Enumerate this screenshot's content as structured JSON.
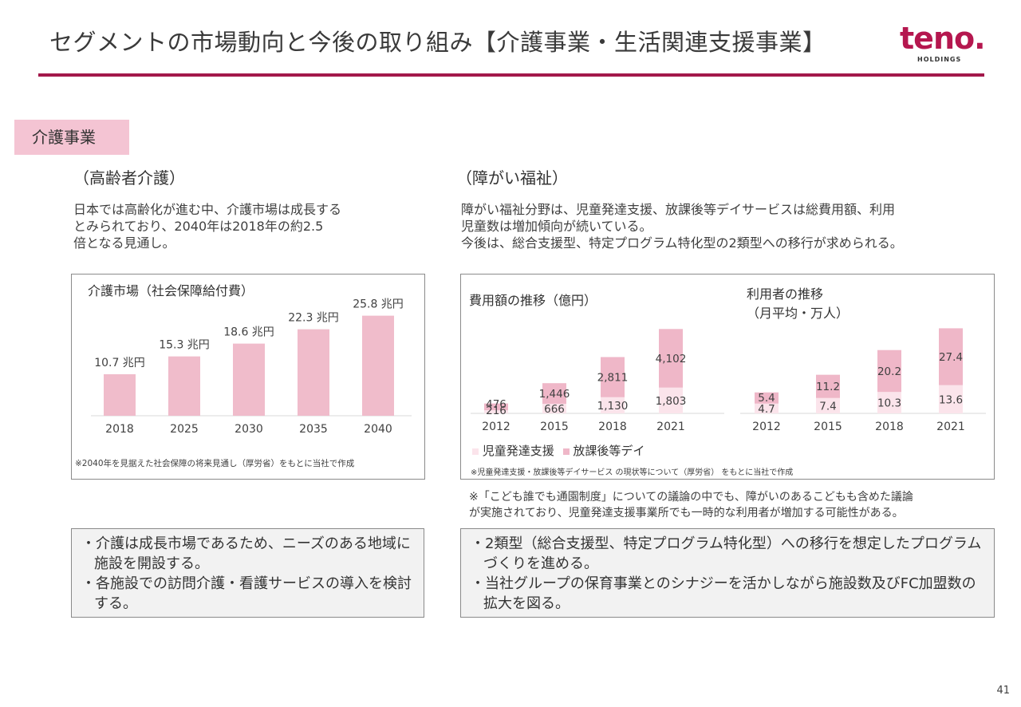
{
  "header": {
    "title": "セグメントの市場動向と今後の取り組み【介護事業・生活関連支援事業】",
    "logo_text": "teno.",
    "logo_sub": "HOLDINGS",
    "accent_color": "#a3184a"
  },
  "segment_tab": "介護事業",
  "left": {
    "heading": "（高齢者介護）",
    "para_lines": [
      "日本では高齢化が進む中、介護市場は成長する",
      "とみられており、2040年は2018年の約2.5",
      "倍となる見通し。"
    ],
    "source": "※2040年を見据えた社会保障の将来見通し（厚労省）をもとに当社で作成",
    "bullets": [
      "・介護は成長市場であるため、ニーズのある地域に施設を開設する。",
      "・各施設での訪問介護・看護サービスの導入を検討する。"
    ]
  },
  "right": {
    "heading": "（障がい福祉）",
    "para_lines": [
      "障がい福祉分野は、児童発達支援、放課後等デイサービスは総費用額、利用",
      "児童数は増加傾向が続いている。",
      "今後は、総合支援型、特定プログラム特化型の2類型への移行が求められる。"
    ],
    "legend": [
      "児童発達支援",
      "放課後等デイ"
    ],
    "source": "※児童発達支援・放課後等デイサービス の現状等について（厚労省） をもとに当社で作成",
    "note_lines": [
      "※「こども誰でも通園制度」についての議論の中でも、障がいのあるこどもも含めた議論",
      "が実施されており、児童発達支援事業所でも一時的な利用者が増加する可能性がある。"
    ],
    "bullets": [
      "・2類型（総合支援型、特定プログラム特化型）への移行を想定したプログラムづくりを進める。",
      "・当社グループの保育事業とのシナジーを活かしながら施設数及びFC加盟数の拡大を図る。"
    ]
  },
  "page_number": "41",
  "chart_data": [
    {
      "type": "bar",
      "title": "介護市場（社会保障給付費）",
      "categories": [
        "2018",
        "2025",
        "2030",
        "2035",
        "2040"
      ],
      "values": [
        10.7,
        15.3,
        18.6,
        22.3,
        25.8
      ],
      "labels": [
        "10.7 兆円",
        "15.3 兆円",
        "18.6 兆円",
        "22.3 兆円",
        "25.8 兆円"
      ],
      "unit": "兆円",
      "color": "#f0bccb"
    },
    {
      "type": "bar",
      "stacked": true,
      "title": "費用額の推移（億円）",
      "categories": [
        "2012",
        "2015",
        "2018",
        "2021"
      ],
      "series": [
        {
          "name": "児童発達支援",
          "values": [
            216,
            666,
            1130,
            1803
          ],
          "labels": [
            "216",
            "666",
            "1,130",
            "1,803"
          ],
          "color": "#fbe4eb"
        },
        {
          "name": "放課後等デイ",
          "values": [
            476,
            1446,
            2811,
            4102
          ],
          "labels": [
            "476",
            "1,446",
            "2,811",
            "4,102"
          ],
          "color": "#efb7c8"
        }
      ]
    },
    {
      "type": "bar",
      "stacked": true,
      "title": "利用者の推移（月平均・万人）",
      "title_lines": [
        "利用者の推移",
        "（月平均・万人）"
      ],
      "categories": [
        "2012",
        "2015",
        "2018",
        "2021"
      ],
      "series": [
        {
          "name": "児童発達支援",
          "values": [
            4.7,
            7.4,
            10.3,
            13.6
          ],
          "labels": [
            "4.7",
            "7.4",
            "10.3",
            "13.6"
          ],
          "color": "#fbe4eb"
        },
        {
          "name": "放課後等デイ",
          "values": [
            5.4,
            11.2,
            20.2,
            27.4
          ],
          "labels": [
            "5.4",
            "11.2",
            "20.2",
            "27.4"
          ],
          "color": "#efb7c8"
        }
      ]
    }
  ]
}
